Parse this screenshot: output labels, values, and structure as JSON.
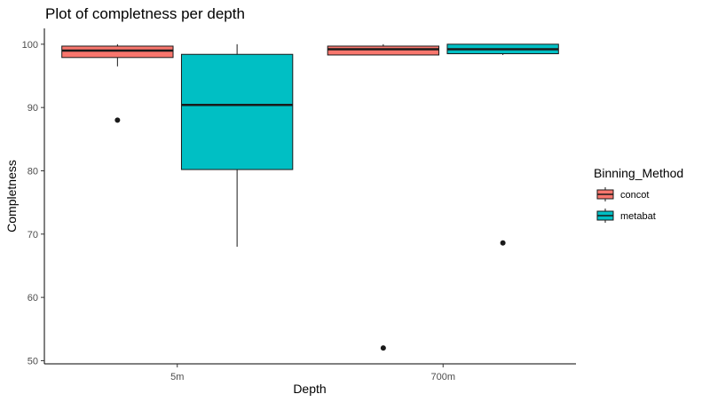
{
  "chart_data": {
    "type": "boxplot",
    "title": "Plot of completness  per depth",
    "xlabel": "Depth",
    "ylabel": "Completness",
    "categories": [
      "5m",
      "700m"
    ],
    "ylim": [
      49.5,
      102.5
    ],
    "yticks": [
      50,
      60,
      70,
      80,
      90,
      100
    ],
    "grid": false,
    "legend": {
      "title": "Binning_Method",
      "placement": "right",
      "entries": [
        "concot",
        "metabat"
      ]
    },
    "series": [
      {
        "name": "concot",
        "color": "#F8766D",
        "boxes": [
          {
            "category": "5m",
            "min": 96.5,
            "q1": 97.9,
            "median": 99.0,
            "q3": 99.7,
            "max": 100,
            "outliers": [
              88
            ]
          },
          {
            "category": "700m",
            "min": 98.3,
            "q1": 98.3,
            "median": 99.2,
            "q3": 99.7,
            "max": 100,
            "outliers": [
              52
            ]
          }
        ]
      },
      {
        "name": "metabat",
        "color": "#00BFC4",
        "boxes": [
          {
            "category": "5m",
            "min": 68.0,
            "q1": 80.2,
            "median": 90.4,
            "q3": 98.4,
            "max": 100,
            "outliers": []
          },
          {
            "category": "700m",
            "min": 98.3,
            "q1": 98.5,
            "median": 99.2,
            "q3": 100,
            "max": 100,
            "outliers": [
              68.6
            ]
          }
        ]
      }
    ]
  }
}
